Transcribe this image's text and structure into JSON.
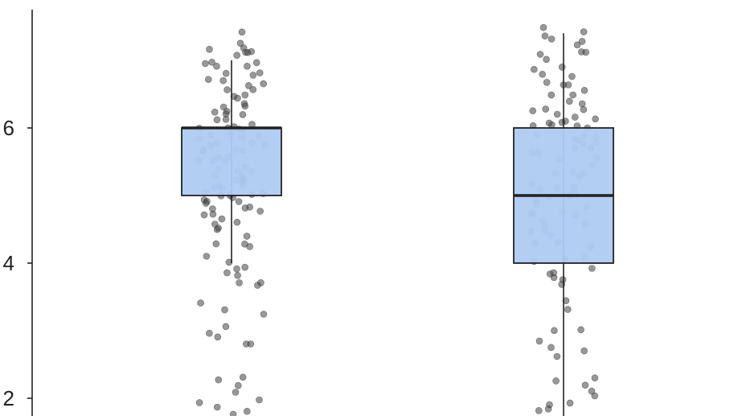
{
  "colors": {
    "box_fill": "#aecbf2",
    "box_stroke": "#222222",
    "point": "#444444",
    "axis": "#222222",
    "tick_text": "#222222"
  },
  "chart_data": {
    "type": "boxplot",
    "title": "",
    "xlabel": "",
    "ylabel": "",
    "ylim": [
      1.7,
      7.8
    ],
    "yticks": [
      2,
      4,
      6
    ],
    "ytick_labels": [
      "2",
      "4",
      "6"
    ],
    "grid": false,
    "legend": "none",
    "groups": [
      {
        "q1": 5,
        "median": 6,
        "q3": 6,
        "whisker_low": 4,
        "whisker_high": 7,
        "points": [
          7.4,
          7.3,
          7.2,
          7.2,
          7.15,
          7.1,
          7.1,
          7.05,
          7.0,
          7.0,
          6.95,
          6.9,
          6.9,
          6.85,
          6.8,
          6.75,
          6.7,
          6.7,
          6.65,
          6.6,
          6.6,
          6.55,
          6.5,
          6.45,
          6.4,
          6.35,
          6.3,
          6.3,
          6.25,
          6.2,
          6.2,
          6.15,
          6.1,
          6.1,
          6.05,
          6.05,
          6.0,
          6.0,
          6.0,
          5.95,
          5.95,
          5.9,
          5.9,
          5.85,
          5.85,
          5.8,
          5.8,
          5.75,
          5.75,
          5.7,
          5.7,
          5.7,
          5.65,
          5.6,
          5.6,
          5.55,
          5.5,
          5.5,
          5.45,
          5.4,
          5.4,
          5.35,
          5.3,
          5.3,
          5.25,
          5.25,
          5.2,
          5.2,
          5.15,
          5.15,
          5.1,
          5.1,
          5.05,
          5.05,
          5.0,
          5.0,
          5.0,
          4.95,
          4.95,
          4.9,
          4.9,
          4.85,
          4.85,
          4.8,
          4.8,
          4.75,
          4.75,
          4.7,
          4.7,
          4.65,
          4.6,
          4.55,
          4.5,
          4.4,
          4.3,
          4.25,
          4.2,
          4.1,
          4.0,
          3.95,
          3.9,
          3.85,
          3.8,
          3.75,
          3.7,
          3.65,
          3.4,
          3.35,
          3.2,
          3.05,
          3.0,
          2.95,
          2.85,
          2.8,
          2.35,
          2.3,
          2.2,
          2.05,
          2.0,
          1.95,
          1.9,
          1.85,
          1.8
        ]
      },
      {
        "q1": 4,
        "median": 5,
        "q3": 6,
        "whisker_low": 1.7,
        "whisker_high": 7.4,
        "points": [
          7.45,
          7.4,
          7.4,
          7.35,
          7.3,
          7.2,
          7.15,
          7.1,
          7.05,
          7.0,
          6.9,
          6.85,
          6.8,
          6.75,
          6.7,
          6.65,
          6.6,
          6.55,
          6.5,
          6.45,
          6.4,
          6.35,
          6.3,
          6.3,
          6.25,
          6.2,
          6.2,
          6.15,
          6.1,
          6.1,
          6.05,
          6.05,
          6.0,
          6.0,
          6.0,
          5.95,
          5.9,
          5.9,
          5.85,
          5.8,
          5.8,
          5.75,
          5.7,
          5.7,
          5.65,
          5.6,
          5.55,
          5.5,
          5.45,
          5.4,
          5.35,
          5.3,
          5.25,
          5.2,
          5.15,
          5.1,
          5.05,
          5.0,
          5.0,
          4.95,
          4.9,
          4.85,
          4.8,
          4.8,
          4.75,
          4.7,
          4.7,
          4.65,
          4.6,
          4.55,
          4.5,
          4.45,
          4.4,
          4.3,
          4.25,
          4.2,
          4.1,
          4.05,
          4.0,
          3.95,
          3.9,
          3.8,
          3.8,
          3.75,
          3.7,
          3.4,
          3.35,
          3.05,
          3.0,
          2.85,
          2.75,
          2.7,
          2.65,
          2.3,
          2.25,
          2.2,
          2.15,
          2.0,
          1.95,
          1.9,
          1.85,
          1.8,
          1.75
        ]
      }
    ]
  }
}
